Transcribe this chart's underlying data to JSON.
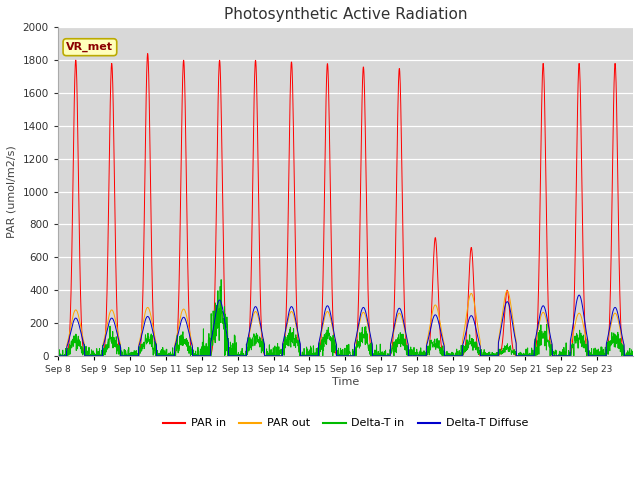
{
  "title": "Photosynthetic Active Radiation",
  "ylabel": "PAR (umol/m2/s)",
  "xlabel": "Time",
  "annotation": "VR_met",
  "ylim": [
    0,
    2000
  ],
  "yticks": [
    0,
    200,
    400,
    600,
    800,
    1000,
    1200,
    1400,
    1600,
    1800,
    2000
  ],
  "xtick_labels": [
    "Sep 8",
    "Sep 9",
    "Sep 10",
    "Sep 11",
    "Sep 12",
    "Sep 13",
    "Sep 14",
    "Sep 15",
    "Sep 16",
    "Sep 17",
    "Sep 18",
    "Sep 19",
    "Sep 20",
    "Sep 21",
    "Sep 22",
    "Sep 23"
  ],
  "legend_labels": [
    "PAR in",
    "PAR out",
    "Delta-T in",
    "Delta-T Diffuse"
  ],
  "legend_colors": [
    "#ff0000",
    "#ffa500",
    "#00bb00",
    "#0000cc"
  ],
  "par_in_peaks": [
    1800,
    1780,
    1840,
    1800,
    1800,
    1800,
    1790,
    1780,
    1760,
    1750,
    720,
    660,
    400,
    1780,
    1780,
    1780
  ],
  "par_out_peaks": [
    280,
    280,
    295,
    285,
    290,
    270,
    270,
    270,
    265,
    260,
    310,
    380,
    395,
    265,
    260,
    260
  ],
  "delta_t_in_peaks": [
    95,
    95,
    100,
    100,
    290,
    110,
    120,
    115,
    115,
    100,
    75,
    80,
    50,
    120,
    115,
    105
  ],
  "delta_t_diff_peaks": [
    230,
    230,
    240,
    235,
    340,
    300,
    300,
    305,
    295,
    290,
    250,
    245,
    330,
    305,
    370,
    295
  ],
  "figure_bg": "#ffffff",
  "plot_bg": "#d8d8d8",
  "grid_color": "#ffffff",
  "num_days": 16,
  "points_per_day": 144
}
